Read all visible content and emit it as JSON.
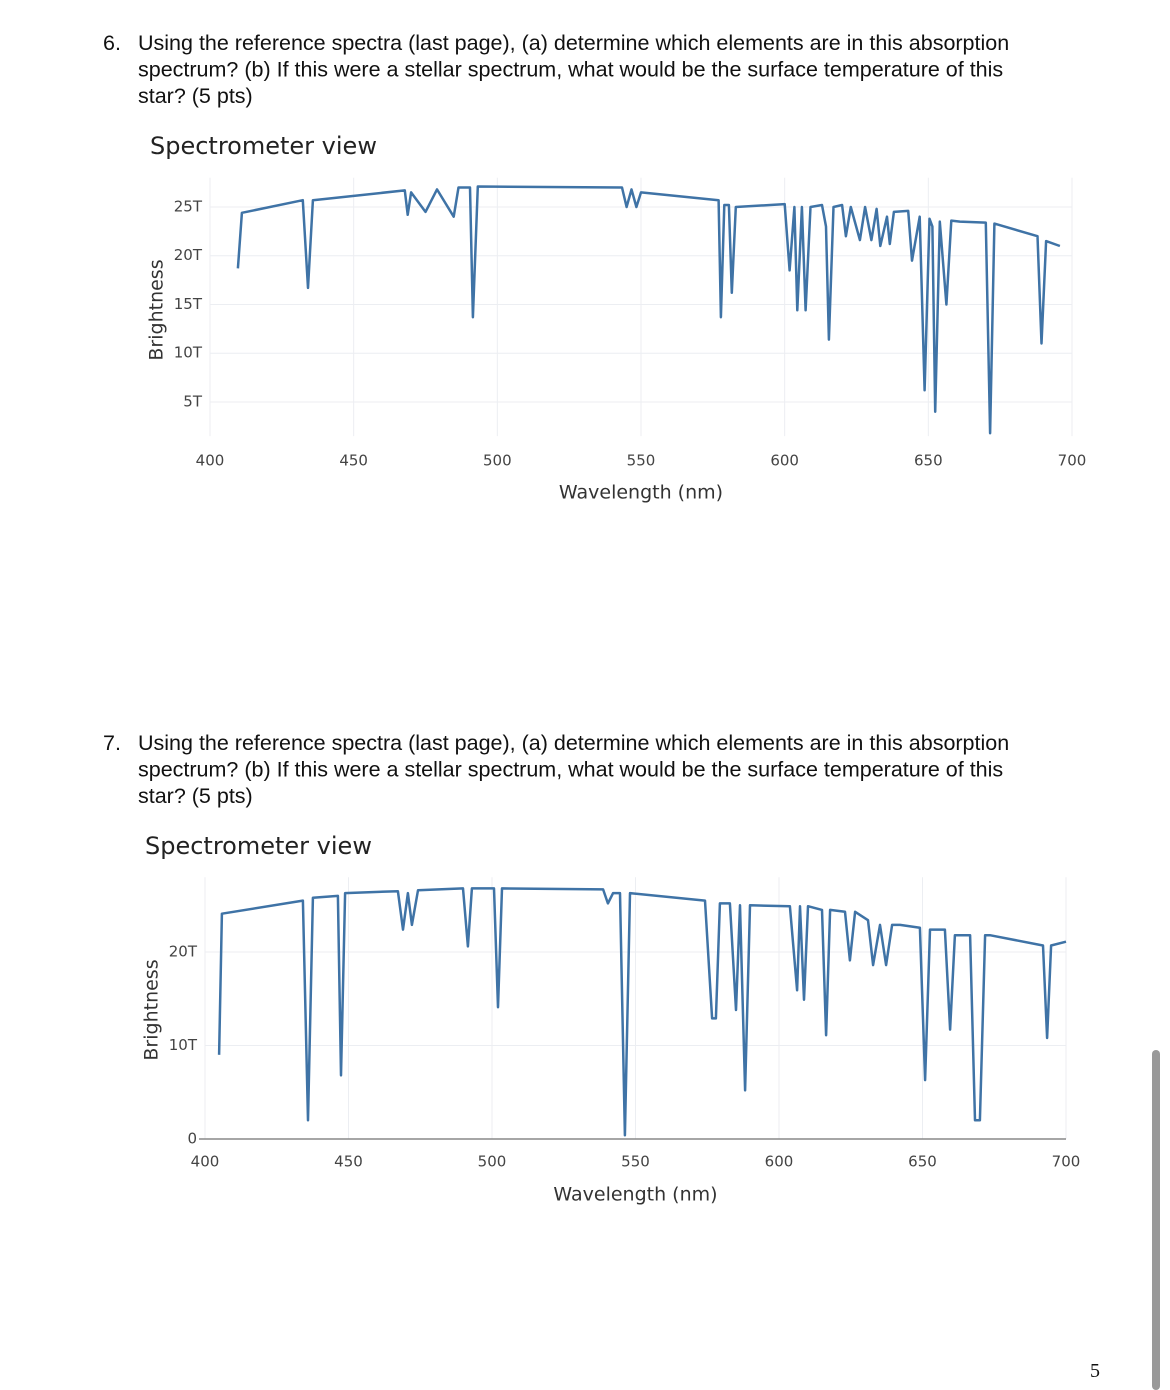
{
  "questions": [
    {
      "number": "6.",
      "lines": [
        "Using the reference spectra (last page), (a) determine which elements are in this absorption",
        "spectrum? (b) If this were a stellar spectrum, what would be the surface temperature of this",
        "star? (5 pts)"
      ]
    },
    {
      "number": "7.",
      "lines": [
        "Using the reference spectra (last page), (a) determine which elements are in this absorption",
        "spectrum? (b) If this were a stellar spectrum, what would be the surface temperature of this",
        "star? (5 pts)"
      ]
    }
  ],
  "chart_data": [
    {
      "type": "line",
      "title": "Spectrometer view",
      "x_label": "Wavelength (nm)",
      "y_label": "Brightness",
      "grid": true,
      "x": [
        409.7,
        411.1,
        432.3,
        434.1,
        435.8,
        467.8,
        468.8,
        470,
        475,
        479,
        484.8,
        486.5,
        490.5,
        491.5,
        493.2,
        543.4,
        545,
        546.7,
        548.4,
        550,
        577,
        577.8,
        579,
        580.6,
        581.6,
        583,
        600,
        601.7,
        603.4,
        604.4,
        606,
        607.3,
        609,
        613,
        614.4,
        615.4,
        617,
        620,
        621.3,
        623,
        626.2,
        628,
        630.2,
        632,
        633.3,
        635.6,
        636.6,
        638,
        643,
        644.3,
        647,
        648.7,
        650.4,
        651.4,
        652.4,
        654,
        656.3,
        658,
        661,
        670,
        671.5,
        673,
        688,
        689.4,
        691,
        695.8
      ],
      "series": [
        {
          "color": "#3f73a6",
          "values": [
            18.7,
            24.4,
            25.7,
            16.7,
            25.7,
            26.7,
            24.2,
            26.5,
            24.5,
            26.8,
            24.0,
            27.0,
            27.0,
            13.7,
            27.1,
            27.0,
            25.0,
            26.8,
            25.0,
            26.5,
            25.7,
            13.7,
            25.2,
            25.2,
            16.2,
            25.0,
            25.3,
            18.5,
            25.0,
            14.4,
            25.0,
            14.4,
            25.0,
            25.2,
            23.0,
            11.4,
            25.0,
            25.2,
            22.0,
            25.0,
            21.6,
            25.0,
            21.6,
            24.8,
            21.0,
            24.0,
            21.2,
            24.5,
            24.6,
            19.5,
            24.0,
            6.2,
            23.8,
            23.0,
            4.0,
            23.5,
            15.0,
            23.6,
            23.5,
            23.4,
            1.8,
            23.3,
            22.0,
            11.0,
            21.5,
            21.0
          ]
        }
      ],
      "xlim": [
        400,
        700
      ],
      "xticks": [
        400,
        450,
        500,
        550,
        600,
        650,
        700
      ],
      "ylim": [
        1.5,
        28
      ],
      "yticks": [
        {
          "value": 5,
          "label": "5T"
        },
        {
          "value": 10,
          "label": "10T"
        },
        {
          "value": 15,
          "label": "15T"
        },
        {
          "value": 20,
          "label": "20T"
        },
        {
          "value": 25,
          "label": "25T"
        }
      ]
    },
    {
      "type": "line",
      "title": "Spectrometer view",
      "x_label": "Wavelength (nm)",
      "y_label": "Brightness",
      "grid": true,
      "zero_line": true,
      "x": [
        404.9,
        405.9,
        434.1,
        435.9,
        437.6,
        446.3,
        447.4,
        448.8,
        467.2,
        469,
        470.7,
        472.1,
        474.2,
        489.9,
        491.6,
        493,
        500.7,
        502.1,
        503.5,
        538.7,
        540.4,
        542.2,
        544.6,
        546.3,
        548.1,
        574.2,
        576.7,
        578,
        579.4,
        582.9,
        585,
        586.4,
        588.2,
        589.9,
        603.8,
        606.3,
        607.3,
        608.7,
        610.1,
        615,
        616.4,
        617.8,
        623,
        624.7,
        626.5,
        631,
        632.8,
        635.2,
        637.3,
        639.4,
        642.2,
        649.1,
        650.9,
        652.6,
        657.8,
        659.6,
        661.3,
        666.6,
        668.3,
        670,
        671.8,
        673.5,
        692,
        693.4,
        694.8,
        700
      ],
      "series": [
        {
          "color": "#3f73a6",
          "values": [
            9.0,
            24.1,
            25.5,
            2.0,
            25.8,
            26.0,
            6.8,
            26.3,
            26.5,
            22.4,
            26.3,
            22.9,
            26.6,
            26.8,
            20.6,
            26.8,
            26.8,
            14.1,
            26.8,
            26.7,
            25.2,
            26.3,
            26.3,
            0.4,
            26.3,
            25.5,
            12.9,
            12.9,
            25.2,
            25.2,
            13.8,
            25.0,
            5.2,
            25.0,
            24.9,
            15.9,
            24.9,
            14.9,
            24.9,
            24.5,
            11.1,
            24.5,
            24.3,
            19.1,
            24.3,
            23.4,
            18.6,
            22.9,
            18.6,
            22.9,
            22.9,
            22.6,
            6.3,
            22.4,
            22.4,
            11.7,
            21.8,
            21.8,
            2.0,
            2.0,
            21.8,
            21.8,
            20.7,
            10.8,
            20.7,
            21.1
          ]
        }
      ],
      "xlim": [
        400,
        700
      ],
      "xticks": [
        400,
        450,
        500,
        550,
        600,
        650,
        700
      ],
      "ylim": [
        0,
        28
      ],
      "yticks": [
        0,
        {
          "value": 10,
          "label": "10T"
        },
        {
          "value": 20,
          "label": "20T"
        }
      ]
    }
  ],
  "page_number": "5"
}
